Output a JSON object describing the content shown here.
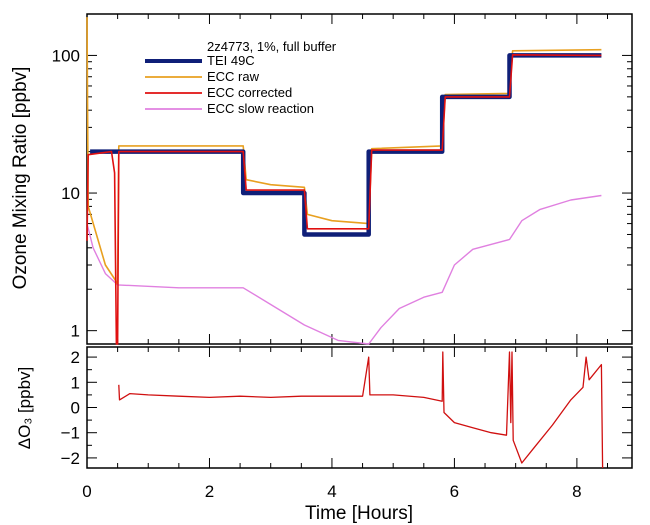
{
  "chart_data": [
    {
      "type": "line",
      "panel": "top",
      "ylabel": "Ozone Mixing Ratio [ppbv]",
      "y_scale": "log",
      "ylim": [
        0.8,
        200
      ],
      "xlim": [
        0,
        8.9
      ],
      "y_ticks": [
        1,
        10,
        100
      ],
      "y_tick_labels": [
        "1",
        "10",
        "100"
      ],
      "legend": {
        "placement": "top-left",
        "title": "2z4773, 1%, full buffer"
      },
      "series": [
        {
          "name": "TEI 49C",
          "color": "#0f1f78",
          "points": [
            [
              0.05,
              20
            ],
            [
              0.5,
              20
            ],
            [
              0.5,
              20
            ],
            [
              2.55,
              20
            ],
            [
              2.55,
              10
            ],
            [
              3.55,
              10
            ],
            [
              3.55,
              5
            ],
            [
              4.6,
              5
            ],
            [
              4.6,
              20
            ],
            [
              5.8,
              20
            ],
            [
              5.8,
              50
            ],
            [
              6.9,
              50
            ],
            [
              6.9,
              100
            ],
            [
              8.4,
              100
            ]
          ]
        },
        {
          "name": "ECC raw",
          "color": "#e8a020",
          "points": [
            [
              0,
              190
            ],
            [
              0.02,
              8
            ],
            [
              0.3,
              3
            ],
            [
              0.5,
              2.2
            ],
            [
              0.52,
              22
            ],
            [
              2.55,
              22
            ],
            [
              2.6,
              12.5
            ],
            [
              3.0,
              11.5
            ],
            [
              3.55,
              11
            ],
            [
              3.6,
              7
            ],
            [
              4.0,
              6.3
            ],
            [
              4.6,
              6
            ],
            [
              4.65,
              21
            ],
            [
              5.8,
              22
            ],
            [
              5.85,
              52
            ],
            [
              6.9,
              53
            ],
            [
              6.95,
              108
            ],
            [
              8.4,
              110
            ]
          ]
        },
        {
          "name": "ECC corrected",
          "color": "#e01010",
          "points": [
            [
              0,
              4.5
            ],
            [
              0.02,
              19
            ],
            [
              0.4,
              20
            ],
            [
              0.45,
              14
            ],
            [
              0.48,
              0.8
            ],
            [
              0.5,
              0.8
            ],
            [
              0.52,
              20
            ],
            [
              2.55,
              20
            ],
            [
              2.6,
              10.5
            ],
            [
              3.55,
              10.5
            ],
            [
              3.6,
              5.5
            ],
            [
              4.6,
              5.5
            ],
            [
              4.65,
              20.5
            ],
            [
              5.8,
              20.5
            ],
            [
              5.85,
              50
            ],
            [
              6.9,
              50
            ],
            [
              6.95,
              101
            ],
            [
              8.4,
              100
            ]
          ]
        },
        {
          "name": "ECC slow reaction",
          "color": "#e080e0",
          "points": [
            [
              0,
              6
            ],
            [
              0.1,
              4
            ],
            [
              0.3,
              2.6
            ],
            [
              0.5,
              2.15
            ],
            [
              1.5,
              2.05
            ],
            [
              2.55,
              2.05
            ],
            [
              3.05,
              1.5
            ],
            [
              3.55,
              1.1
            ],
            [
              4.1,
              0.85
            ],
            [
              4.6,
              0.72
            ],
            [
              4.8,
              1.05
            ],
            [
              5.1,
              1.45
            ],
            [
              5.5,
              1.75
            ],
            [
              5.8,
              1.9
            ],
            [
              6.0,
              3.0
            ],
            [
              6.3,
              3.9
            ],
            [
              6.9,
              4.6
            ],
            [
              7.1,
              6.3
            ],
            [
              7.4,
              7.6
            ],
            [
              7.9,
              8.9
            ],
            [
              8.4,
              9.6
            ]
          ]
        }
      ]
    },
    {
      "type": "line",
      "panel": "bottom",
      "ylabel": "ΔO₃ [ppbv]",
      "xlabel": "Time [Hours]",
      "ylim": [
        -2.4,
        2.4
      ],
      "xlim": [
        0,
        8.9
      ],
      "y_ticks": [
        -2,
        -1,
        0,
        1,
        2
      ],
      "y_tick_labels": [
        "−2",
        "−1",
        "0",
        "1",
        "2"
      ],
      "x_ticks": [
        0,
        2,
        4,
        6,
        8
      ],
      "x_tick_labels": [
        "0",
        "2",
        "4",
        "6",
        "8"
      ],
      "series": [
        {
          "color": "#d01010",
          "points": [
            [
              0.52,
              0.9
            ],
            [
              0.53,
              0.3
            ],
            [
              0.7,
              0.55
            ],
            [
              1.0,
              0.5
            ],
            [
              1.5,
              0.45
            ],
            [
              2.0,
              0.4
            ],
            [
              2.5,
              0.45
            ],
            [
              3.0,
              0.4
            ],
            [
              3.5,
              0.45
            ],
            [
              4.0,
              0.45
            ],
            [
              4.5,
              0.45
            ],
            [
              4.6,
              2.0
            ],
            [
              4.62,
              0.5
            ],
            [
              5.0,
              0.5
            ],
            [
              5.5,
              0.4
            ],
            [
              5.8,
              0.25
            ],
            [
              5.81,
              2.2
            ],
            [
              5.83,
              -0.2
            ],
            [
              6.0,
              -0.6
            ],
            [
              6.3,
              -0.8
            ],
            [
              6.6,
              -1.0
            ],
            [
              6.85,
              -1.1
            ],
            [
              6.9,
              2.2
            ],
            [
              6.92,
              -0.6
            ],
            [
              6.94,
              2.2
            ],
            [
              6.96,
              -1.3
            ],
            [
              7.1,
              -2.2
            ],
            [
              7.3,
              -1.6
            ],
            [
              7.6,
              -0.7
            ],
            [
              7.9,
              0.3
            ],
            [
              8.1,
              0.8
            ],
            [
              8.15,
              2.0
            ],
            [
              8.2,
              1.1
            ],
            [
              8.4,
              1.7
            ],
            [
              8.42,
              -2.4
            ]
          ]
        }
      ]
    }
  ]
}
